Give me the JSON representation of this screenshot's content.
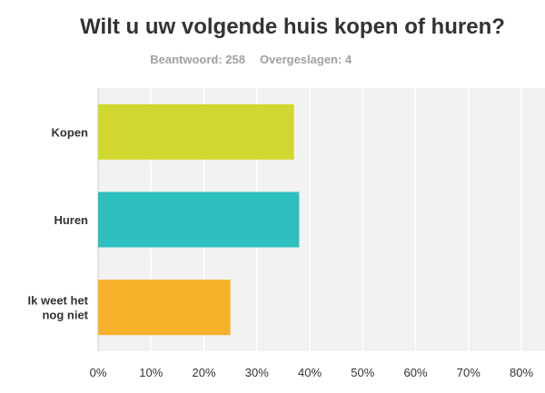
{
  "chart_data": {
    "type": "bar",
    "orientation": "horizontal",
    "title": "Wilt u uw volgende huis kopen of huren?",
    "answered_label": "Beantwoord: 258",
    "skipped_label": "Overgeslagen: 4",
    "categories": [
      [
        "Kopen"
      ],
      [
        "Huren"
      ],
      [
        "Ik weet het",
        "nog niet"
      ]
    ],
    "values": [
      37,
      38,
      25
    ],
    "colors": [
      "#d0d72e",
      "#2ebfbf",
      "#f7b12a"
    ],
    "xlim": [
      0,
      85
    ],
    "ticks": [
      0,
      10,
      20,
      30,
      40,
      50,
      60,
      70,
      80
    ],
    "tick_labels": [
      "0%",
      "10%",
      "20%",
      "30%",
      "40%",
      "50%",
      "60%",
      "70%",
      "80%"
    ],
    "grid": true,
    "plot_background": "#f2f2f2",
    "legend": "none"
  }
}
